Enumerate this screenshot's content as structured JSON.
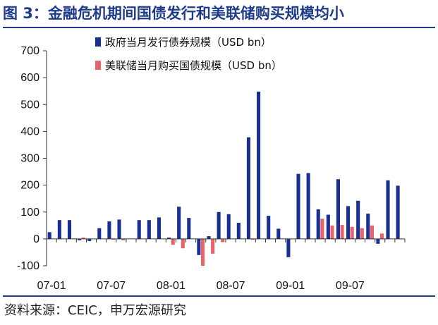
{
  "header": {
    "title": "图 3：金融危机期间国债发行和美联储购买规模均小"
  },
  "footer": {
    "source": "资料来源：CEIC，申万宏源研究"
  },
  "chart_data": {
    "type": "bar",
    "title": "图 3：金融危机期间国债发行和美联储购买规模均小",
    "xlabel": "",
    "ylabel": "",
    "ylim": [
      -100,
      700
    ],
    "yticks": [
      -100,
      0,
      100,
      200,
      300,
      400,
      500,
      600,
      700
    ],
    "legend_position": "top-right",
    "grid": false,
    "colors": {
      "issuance": "#1a2f94",
      "purchase": "#e8646c"
    },
    "categories": [
      "07-01",
      "07-02",
      "07-03",
      "07-04",
      "07-05",
      "07-06",
      "07-07",
      "07-08",
      "07-09",
      "07-10",
      "07-11",
      "07-12",
      "08-01",
      "08-02",
      "08-03",
      "08-04",
      "08-05",
      "08-06",
      "08-07",
      "08-08",
      "08-09",
      "08-10",
      "08-11",
      "08-12",
      "09-01",
      "09-02",
      "09-03",
      "09-04",
      "09-05",
      "09-06",
      "09-07",
      "09-08",
      "09-09",
      "09-10",
      "09-11",
      "09-12"
    ],
    "x_tick_labels": [
      "07-01",
      "07-07",
      "08-01",
      "08-07",
      "09-01",
      "09-07"
    ],
    "series": [
      {
        "name": "政府当月发行债券规模（USD bn）",
        "values": [
          25,
          70,
          70,
          -5,
          -8,
          40,
          65,
          72,
          0,
          70,
          70,
          80,
          5,
          120,
          78,
          -60,
          10,
          100,
          92,
          60,
          378,
          548,
          86,
          38,
          -68,
          242,
          245,
          110,
          90,
          222,
          122,
          142,
          94,
          -18,
          218,
          198
        ]
      },
      {
        "name": "美联储当月购买国债规模（USD bn）",
        "values": [
          0,
          0,
          0,
          5,
          0,
          0,
          -3,
          -5,
          0,
          0,
          0,
          0,
          -22,
          -35,
          0,
          -100,
          -55,
          -12,
          0,
          0,
          -3,
          0,
          0,
          0,
          0,
          0,
          0,
          75,
          50,
          52,
          45,
          40,
          50,
          20,
          0,
          0
        ]
      }
    ]
  }
}
